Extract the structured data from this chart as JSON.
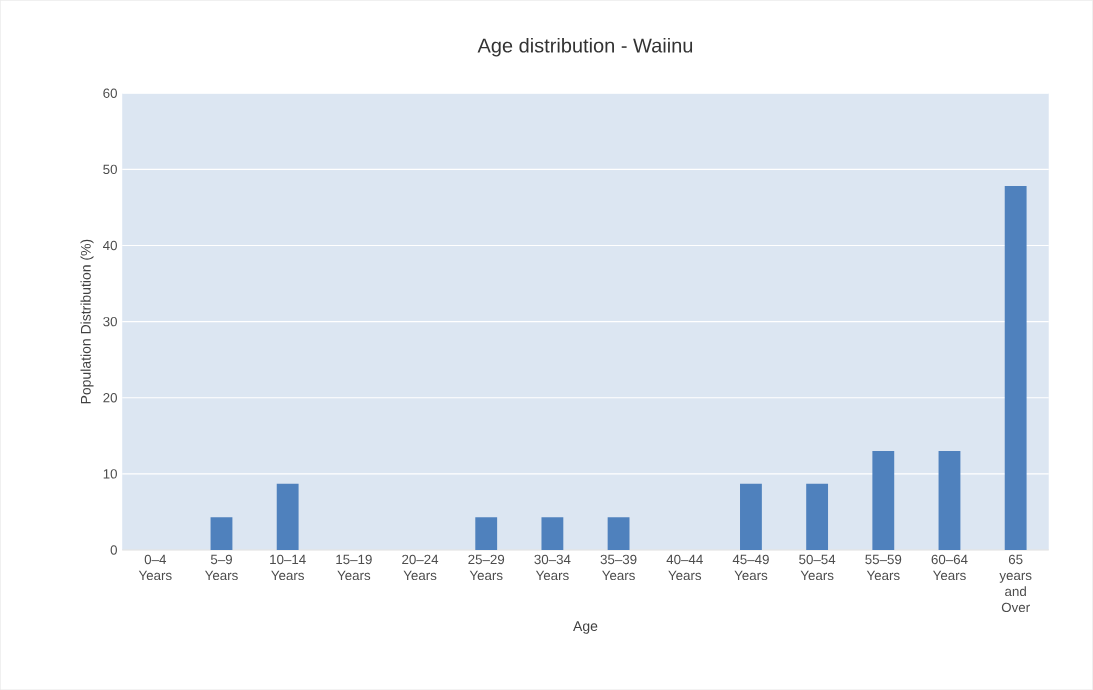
{
  "chart_data": {
    "type": "bar",
    "title": "Age distribution - Waiinu",
    "xlabel": "Age",
    "ylabel": "Population Distribution (%)",
    "categories": [
      "0–4 Years",
      "5–9 Years",
      "10–14 Years",
      "15–19 Years",
      "20–24 Years",
      "25–29 Years",
      "30–34 Years",
      "35–39 Years",
      "40–44 Years",
      "45–49 Years",
      "50–54 Years",
      "55–59 Years",
      "60–64 Years",
      "65 years and Over"
    ],
    "values": [
      0,
      4.3,
      8.7,
      0,
      0,
      4.3,
      4.3,
      4.3,
      0,
      8.7,
      8.7,
      13.0,
      13.0,
      47.8
    ],
    "color": "#4f81bd",
    "ylim": [
      0,
      60
    ],
    "yticks": [
      0,
      10,
      20,
      30,
      40,
      50,
      60
    ],
    "grid": "y"
  }
}
